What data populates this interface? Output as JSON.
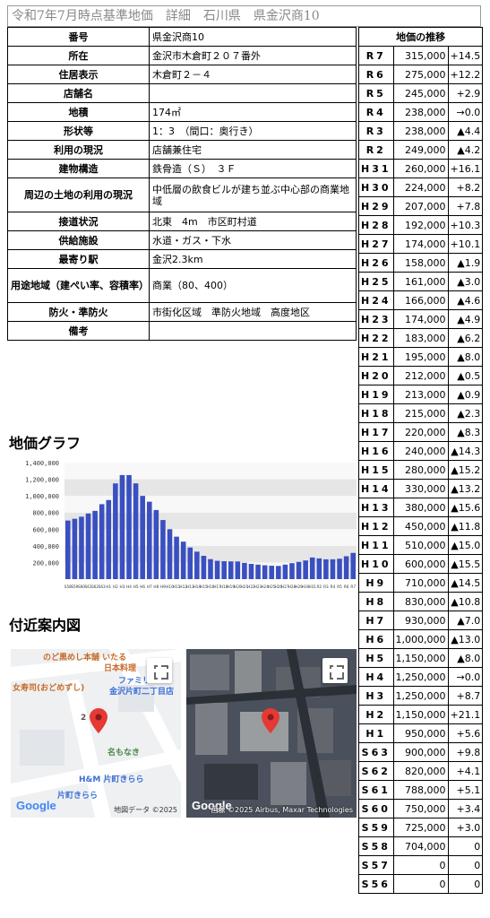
{
  "header": {
    "title": "令和7年7月時点基準地価　詳細　石川県　県金沢商10"
  },
  "details": [
    {
      "label": "番号",
      "value": "県金沢商10"
    },
    {
      "label": "所在",
      "value": "金沢市木倉町２０７番外"
    },
    {
      "label": "住居表示",
      "value": "木倉町２－４"
    },
    {
      "label": "店舗名",
      "value": ""
    },
    {
      "label": "地積",
      "value": "174㎡"
    },
    {
      "label": "形状等",
      "value": "1：3　（間口：奥行き）"
    },
    {
      "label": "利用の現況",
      "value": "店舗兼住宅"
    },
    {
      "label": "建物構造",
      "value": "鉄骨造（Ｓ）　３Ｆ"
    },
    {
      "label": "周辺の土地の利用の現況",
      "value": "中低層の飲食ビルが建ち並ぶ中心部の商業地域"
    },
    {
      "label": "接道状況",
      "value": "北東　4m　市区町村道"
    },
    {
      "label": "供給施設",
      "value": "水道・ガス・下水"
    },
    {
      "label": "最寄り駅",
      "value": "金沢2.3km"
    },
    {
      "label": "用途地域（建ぺい率、容積率）",
      "value": "商業（80、400）"
    },
    {
      "label": "防火・準防火",
      "value": "市街化区域　準防火地域　高度地区"
    },
    {
      "label": "備考",
      "value": ""
    }
  ],
  "history": {
    "heading": "地価の推移",
    "rows": [
      {
        "era": "R7",
        "price": "315,000",
        "change": "+14.5"
      },
      {
        "era": "R6",
        "price": "275,000",
        "change": "+12.2"
      },
      {
        "era": "R5",
        "price": "245,000",
        "change": "+2.9"
      },
      {
        "era": "R4",
        "price": "238,000",
        "change": "→0.0"
      },
      {
        "era": "R3",
        "price": "238,000",
        "change": "▲4.4"
      },
      {
        "era": "R2",
        "price": "249,000",
        "change": "▲4.2"
      },
      {
        "era": "H31",
        "price": "260,000",
        "change": "+16.1"
      },
      {
        "era": "H30",
        "price": "224,000",
        "change": "+8.2"
      },
      {
        "era": "H29",
        "price": "207,000",
        "change": "+7.8"
      },
      {
        "era": "H28",
        "price": "192,000",
        "change": "+10.3"
      },
      {
        "era": "H27",
        "price": "174,000",
        "change": "+10.1"
      },
      {
        "era": "H26",
        "price": "158,000",
        "change": "▲1.9"
      },
      {
        "era": "H25",
        "price": "161,000",
        "change": "▲3.0"
      },
      {
        "era": "H24",
        "price": "166,000",
        "change": "▲4.6"
      },
      {
        "era": "H23",
        "price": "174,000",
        "change": "▲4.9"
      },
      {
        "era": "H22",
        "price": "183,000",
        "change": "▲6.2"
      },
      {
        "era": "H21",
        "price": "195,000",
        "change": "▲8.0"
      },
      {
        "era": "H20",
        "price": "212,000",
        "change": "▲0.5"
      },
      {
        "era": "H19",
        "price": "213,000",
        "change": "▲0.9"
      },
      {
        "era": "H18",
        "price": "215,000",
        "change": "▲2.3"
      },
      {
        "era": "H17",
        "price": "220,000",
        "change": "▲8.3"
      },
      {
        "era": "H16",
        "price": "240,000",
        "change": "▲14.3"
      },
      {
        "era": "H15",
        "price": "280,000",
        "change": "▲15.2"
      },
      {
        "era": "H14",
        "price": "330,000",
        "change": "▲13.2"
      },
      {
        "era": "H13",
        "price": "380,000",
        "change": "▲15.6"
      },
      {
        "era": "H12",
        "price": "450,000",
        "change": "▲11.8"
      },
      {
        "era": "H11",
        "price": "510,000",
        "change": "▲15.0"
      },
      {
        "era": "H10",
        "price": "600,000",
        "change": "▲15.5"
      },
      {
        "era": "H9",
        "price": "710,000",
        "change": "▲14.5"
      },
      {
        "era": "H8",
        "price": "830,000",
        "change": "▲10.8"
      },
      {
        "era": "H7",
        "price": "930,000",
        "change": "▲7.0"
      },
      {
        "era": "H6",
        "price": "1,000,000",
        "change": "▲13.0"
      },
      {
        "era": "H5",
        "price": "1,150,000",
        "change": "▲8.0"
      },
      {
        "era": "H4",
        "price": "1,250,000",
        "change": "→0.0"
      },
      {
        "era": "H3",
        "price": "1,250,000",
        "change": "+8.7"
      },
      {
        "era": "H2",
        "price": "1,150,000",
        "change": "+21.1"
      },
      {
        "era": "H1",
        "price": "950,000",
        "change": "+5.6"
      },
      {
        "era": "S63",
        "price": "900,000",
        "change": "+9.8"
      },
      {
        "era": "S62",
        "price": "820,000",
        "change": "+4.1"
      },
      {
        "era": "S61",
        "price": "788,000",
        "change": "+5.1"
      },
      {
        "era": "S60",
        "price": "750,000",
        "change": "+3.4"
      },
      {
        "era": "S59",
        "price": "725,000",
        "change": "+3.0"
      },
      {
        "era": "S58",
        "price": "704,000",
        "change": "0"
      },
      {
        "era": "S57",
        "price": "0",
        "change": "0"
      },
      {
        "era": "S56",
        "price": "0",
        "change": "0"
      }
    ]
  },
  "graph_heading": "地価グラフ",
  "map_heading": "付近案内図",
  "chart_data": {
    "type": "bar",
    "title": "",
    "xlabel": "",
    "ylabel": "",
    "ylim": [
      0,
      1400000
    ],
    "yticks": [
      "200,000",
      "400,000",
      "600,000",
      "800,000",
      "1,000,000",
      "1,200,000",
      "1,400,000"
    ],
    "bar_color": "#3a4fc0",
    "categories": [
      "S58",
      "S59",
      "S60",
      "S61",
      "S62",
      "S63",
      "H1",
      "H2",
      "H3",
      "H4",
      "H5",
      "H6",
      "H7",
      "H8",
      "H9",
      "H10",
      "H11",
      "H12",
      "H13",
      "H14",
      "H15",
      "H16",
      "H17",
      "H18",
      "H19",
      "H20",
      "H21",
      "H22",
      "H23",
      "H24",
      "H25",
      "H26",
      "H27",
      "H28",
      "H29",
      "H30",
      "H31",
      "R2",
      "R3",
      "R4",
      "R5",
      "R6",
      "R7"
    ],
    "values": [
      704000,
      725000,
      750000,
      788000,
      820000,
      900000,
      950000,
      1150000,
      1250000,
      1250000,
      1150000,
      1000000,
      930000,
      830000,
      710000,
      600000,
      510000,
      450000,
      380000,
      330000,
      280000,
      240000,
      220000,
      215000,
      213000,
      212000,
      195000,
      183000,
      174000,
      166000,
      161000,
      158000,
      174000,
      192000,
      207000,
      224000,
      260000,
      249000,
      238000,
      238000,
      245000,
      275000,
      315000
    ]
  },
  "maps": {
    "street": {
      "labels": [
        "のど黒めし本舗 いたる",
        "日本料理",
        "女寿司(おどめずし)",
        "ファミリー",
        "金沢片町二丁目店",
        "2",
        "名もなき",
        "H&M 片町きらら",
        "片町きらら"
      ],
      "logo": "Google",
      "attribution": "地図データ ©2025"
    },
    "satellite": {
      "logo": "Google",
      "attribution": "画像 ©2025 Airbus, Maxar Technologies"
    }
  }
}
